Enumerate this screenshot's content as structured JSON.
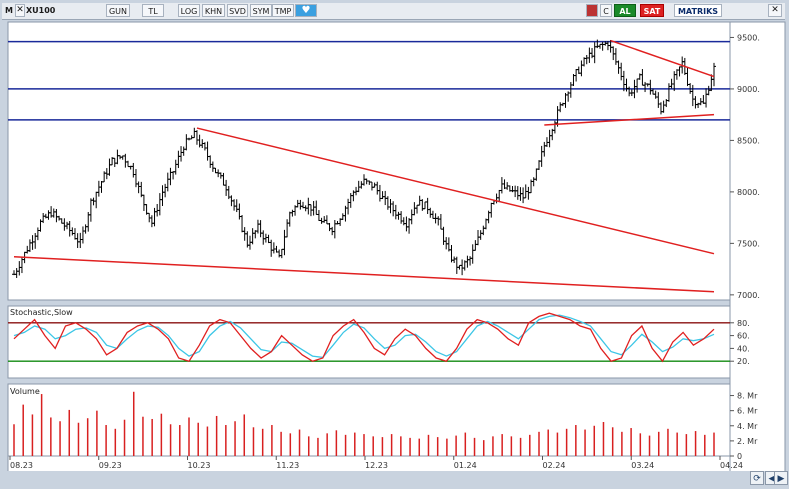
{
  "toolbar": {
    "m_label": "M",
    "symbol": "XU100",
    "period": "GUN",
    "currency": "TL",
    "log": "LOG",
    "khn": "KHN",
    "svd": "SVD",
    "sym": "SYM",
    "tmp": "TMP",
    "c_label": "C",
    "al_label": "AL",
    "sat_label": "SAT",
    "brand": "MATRIKS"
  },
  "colors": {
    "price_bar": "#000000",
    "trend_red": "#e02020",
    "horizontal_blue": "#1a2a9a",
    "stoch_k": "#e02020",
    "stoch_d": "#3cc6e6",
    "stoch_upper": "#8a1010",
    "stoch_lower": "#108a10",
    "volume_bar": "#d82020"
  },
  "indicators": {
    "stochastic_label": "Stochastic,Slow",
    "volume_label": "Volume"
  },
  "price_axis": {
    "ticks": [
      "9500.",
      "9000.",
      "8500.",
      "8000.",
      "7500.",
      "7000."
    ]
  },
  "stoch_axis": {
    "ticks": [
      "80.",
      "60.",
      "40.",
      "20."
    ]
  },
  "volume_axis": {
    "ticks": [
      "8. Mr",
      "6. Mr",
      "4. Mr",
      "2. Mr",
      "0"
    ]
  },
  "x_axis": {
    "ticks": [
      "08.23",
      "09.23",
      "10.23",
      "11.23",
      "12.23",
      "01.24",
      "02.24",
      "03.24",
      "04.24"
    ]
  },
  "chart_data": {
    "type": "bar",
    "title": "XU100",
    "period": "GUN",
    "ylim": [
      6950,
      9650
    ],
    "horizontal_levels": [
      9460,
      9000,
      8700
    ],
    "close_path": [
      [
        0,
        7200
      ],
      [
        3,
        7350
      ],
      [
        6,
        7500
      ],
      [
        10,
        7700
      ],
      [
        14,
        7800
      ],
      [
        18,
        7700
      ],
      [
        22,
        7600
      ],
      [
        25,
        7500
      ],
      [
        29,
        7900
      ],
      [
        33,
        8100
      ],
      [
        37,
        8300
      ],
      [
        41,
        8350
      ],
      [
        45,
        8200
      ],
      [
        48,
        7950
      ],
      [
        52,
        7700
      ],
      [
        56,
        8000
      ],
      [
        60,
        8200
      ],
      [
        64,
        8450
      ],
      [
        68,
        8550
      ],
      [
        72,
        8400
      ],
      [
        76,
        8200
      ],
      [
        80,
        8050
      ],
      [
        84,
        7800
      ],
      [
        88,
        7500
      ],
      [
        92,
        7650
      ],
      [
        96,
        7500
      ],
      [
        100,
        7350
      ],
      [
        104,
        7800
      ],
      [
        108,
        7900
      ],
      [
        112,
        7850
      ],
      [
        116,
        7700
      ],
      [
        120,
        7650
      ],
      [
        124,
        7800
      ],
      [
        128,
        8000
      ],
      [
        132,
        8100
      ],
      [
        136,
        8050
      ],
      [
        140,
        7900
      ],
      [
        144,
        7800
      ],
      [
        148,
        7700
      ],
      [
        152,
        7900
      ],
      [
        156,
        7850
      ],
      [
        160,
        7700
      ],
      [
        164,
        7400
      ],
      [
        168,
        7250
      ],
      [
        172,
        7350
      ],
      [
        176,
        7600
      ],
      [
        180,
        7900
      ],
      [
        184,
        8050
      ],
      [
        188,
        8000
      ],
      [
        192,
        7950
      ],
      [
        196,
        8100
      ],
      [
        200,
        8450
      ],
      [
        204,
        8700
      ],
      [
        208,
        8950
      ],
      [
        212,
        9150
      ],
      [
        216,
        9300
      ],
      [
        220,
        9400
      ],
      [
        224,
        9450
      ],
      [
        228,
        9200
      ],
      [
        232,
        8950
      ],
      [
        236,
        9100
      ],
      [
        240,
        9000
      ],
      [
        244,
        8800
      ],
      [
        248,
        9050
      ],
      [
        252,
        9250
      ],
      [
        256,
        8900
      ],
      [
        260,
        8850
      ],
      [
        264,
        9200
      ]
    ],
    "red_trendlines": [
      {
        "from": [
          0,
          7370
        ],
        "to": [
          264,
          7030
        ]
      },
      {
        "from": [
          69,
          8620
        ],
        "to": [
          264,
          7400
        ]
      },
      {
        "from": [
          225,
          9470
        ],
        "to": [
          264,
          9120
        ]
      },
      {
        "from": [
          200,
          8650
        ],
        "to": [
          264,
          8750
        ]
      }
    ],
    "stochastic": {
      "upper": 80,
      "lower": 20,
      "k": [
        55,
        70,
        85,
        60,
        40,
        75,
        80,
        70,
        55,
        30,
        40,
        65,
        75,
        80,
        70,
        55,
        25,
        20,
        45,
        75,
        85,
        80,
        60,
        40,
        25,
        35,
        60,
        45,
        30,
        20,
        25,
        60,
        75,
        85,
        65,
        40,
        30,
        55,
        70,
        60,
        40,
        25,
        20,
        40,
        70,
        85,
        80,
        70,
        55,
        45,
        80,
        90,
        95,
        90,
        85,
        75,
        70,
        40,
        20,
        25,
        60,
        75,
        40,
        20,
        50,
        65,
        45,
        55,
        70
      ],
      "d": [
        60,
        65,
        75,
        70,
        55,
        60,
        70,
        72,
        65,
        45,
        40,
        55,
        68,
        75,
        73,
        60,
        40,
        28,
        35,
        60,
        75,
        82,
        72,
        55,
        38,
        35,
        50,
        48,
        38,
        28,
        26,
        45,
        65,
        78,
        72,
        55,
        40,
        45,
        60,
        62,
        50,
        35,
        28,
        35,
        55,
        75,
        82,
        75,
        65,
        55,
        70,
        85,
        90,
        92,
        88,
        82,
        75,
        55,
        35,
        30,
        45,
        62,
        50,
        35,
        42,
        55,
        52,
        55,
        62
      ]
    },
    "volume": {
      "unit": "Mr",
      "ylim": [
        0,
        9
      ],
      "values": [
        4.2,
        6.8,
        5.5,
        8.2,
        5.1,
        4.6,
        6.1,
        4.4,
        5.0,
        6.0,
        4.1,
        3.6,
        4.8,
        8.5,
        5.2,
        4.9,
        5.6,
        4.2,
        4.1,
        5.1,
        4.4,
        3.9,
        5.3,
        4.1,
        4.6,
        5.5,
        3.8,
        3.6,
        4.1,
        3.2,
        3.0,
        3.5,
        2.6,
        2.4,
        3.0,
        3.4,
        2.8,
        3.1,
        2.9,
        2.6,
        2.5,
        2.9,
        2.6,
        2.4,
        2.3,
        2.8,
        2.5,
        2.3,
        2.7,
        3.1,
        2.4,
        2.1,
        2.6,
        2.9,
        2.6,
        2.4,
        2.8,
        3.2,
        3.5,
        3.1,
        3.6,
        4.1,
        3.5,
        4.0,
        4.5,
        3.8,
        3.2,
        3.7,
        3.0,
        2.7,
        3.2,
        3.6,
        3.1,
        2.9,
        3.3,
        2.8,
        3.1
      ]
    }
  }
}
